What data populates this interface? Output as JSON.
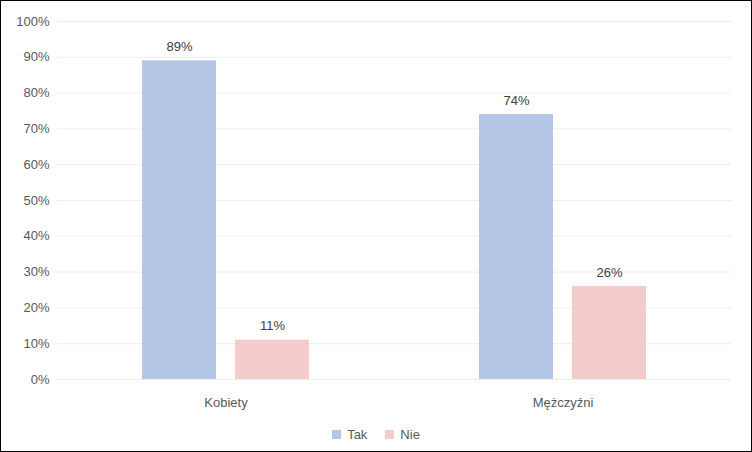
{
  "chart_data": {
    "type": "bar",
    "categories": [
      "Kobiety",
      "Mężczyźni"
    ],
    "series": [
      {
        "name": "Tak",
        "color": "#b4c7e7",
        "values": [
          89,
          74
        ],
        "value_labels": [
          "89%",
          "74%"
        ]
      },
      {
        "name": "Nie",
        "color": "#f4cccc",
        "values": [
          11,
          26
        ],
        "value_labels": [
          "11%",
          "26%"
        ]
      }
    ],
    "ylim": [
      0,
      100
    ],
    "yticks": [
      {
        "value": 0,
        "label": "0%"
      },
      {
        "value": 10,
        "label": "10%"
      },
      {
        "value": 20,
        "label": "20%"
      },
      {
        "value": 30,
        "label": "30%"
      },
      {
        "value": 40,
        "label": "40%"
      },
      {
        "value": 50,
        "label": "50%"
      },
      {
        "value": 60,
        "label": "60%"
      },
      {
        "value": 70,
        "label": "70%"
      },
      {
        "value": 80,
        "label": "80%"
      },
      {
        "value": 90,
        "label": "90%"
      },
      {
        "value": 100,
        "label": "100%"
      }
    ],
    "grid": true,
    "data_labels": true,
    "legend": "bottom"
  }
}
